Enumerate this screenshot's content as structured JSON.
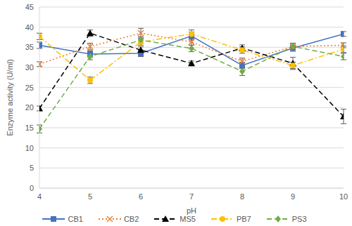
{
  "chart_data": {
    "type": "line",
    "x_label": "pH",
    "y_label": "Enzyme activity (U/ml)",
    "x": [
      4,
      5,
      6,
      7,
      8,
      9,
      10
    ],
    "xlim": [
      4,
      10
    ],
    "xticks": [
      4,
      5,
      6,
      7,
      8,
      9,
      10
    ],
    "ylim": [
      0,
      45
    ],
    "yticks": [
      0,
      5,
      10,
      15,
      20,
      25,
      30,
      35,
      40,
      45
    ],
    "grid": true,
    "legend": "bottom",
    "series": [
      {
        "name": "CB1",
        "color": "#4472c4",
        "marker": "square",
        "line_style": "solid",
        "values": [
          35.5,
          33.3,
          33.5,
          37.8,
          30.5,
          34.8,
          38.3
        ],
        "errors": [
          0.8,
          0.8,
          0.8,
          1.0,
          0.8,
          0.8,
          0.6
        ]
      },
      {
        "name": "CB2",
        "color": "#ed7d31",
        "marker": "x",
        "line_style": "dotted",
        "values": [
          30.8,
          35.2,
          38.5,
          36.3,
          31.5,
          35.2,
          35.5
        ],
        "errors": [
          0.6,
          0.8,
          1.2,
          0.8,
          0.8,
          0.8,
          0.6
        ]
      },
      {
        "name": "MS5",
        "color": "#000000",
        "marker": "triangle",
        "line_style": "dashed",
        "values": [
          19.8,
          38.5,
          34.3,
          31.0,
          34.8,
          31.0,
          17.8
        ],
        "errors": [
          0.6,
          0.8,
          0.8,
          0.6,
          0.8,
          1.5,
          1.8
        ]
      },
      {
        "name": "PB7",
        "color": "#ffc000",
        "marker": "circle",
        "line_style": "dashdot",
        "values": [
          37.7,
          26.8,
          36.3,
          38.3,
          34.3,
          30.5,
          34.5
        ],
        "errors": [
          0.8,
          0.8,
          0.8,
          1.0,
          0.8,
          0.8,
          0.8
        ]
      },
      {
        "name": "PS3",
        "color": "#70ad47",
        "marker": "diamond",
        "line_style": "dashed",
        "values": [
          14.7,
          32.7,
          36.8,
          34.7,
          29.0,
          35.2,
          32.7
        ],
        "errors": [
          1.0,
          0.8,
          0.8,
          0.8,
          1.0,
          0.8,
          0.8
        ]
      }
    ]
  }
}
